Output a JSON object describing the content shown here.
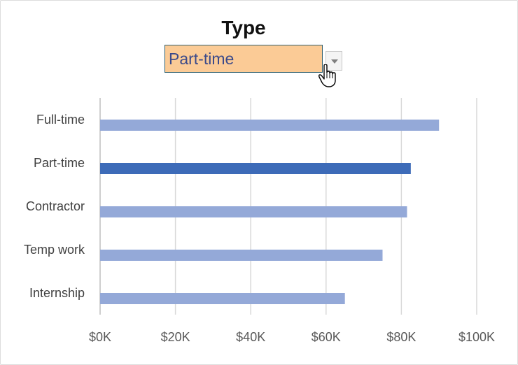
{
  "header": {
    "title": "Type"
  },
  "filter": {
    "selected": "Part-time"
  },
  "colors": {
    "highlight": "#3d6bb8",
    "bar": "#94a9d8",
    "dropdown_bg": "#fbcb96",
    "gridline": "#d9d9d9"
  },
  "chart_data": {
    "type": "bar",
    "orientation": "horizontal",
    "categories": [
      "Full-time",
      "Part-time",
      "Contractor",
      "Temp work",
      "Internship"
    ],
    "values": [
      90000,
      82500,
      81500,
      75000,
      65000
    ],
    "highlighted": "Part-time",
    "xlim": [
      0,
      100000
    ],
    "x_ticks": [
      0,
      20000,
      40000,
      60000,
      80000,
      100000
    ],
    "x_tick_labels": [
      "$0K",
      "$20K",
      "$40K",
      "$60K",
      "$80K",
      "$100K"
    ],
    "grid": "vertical",
    "legend": "none"
  }
}
